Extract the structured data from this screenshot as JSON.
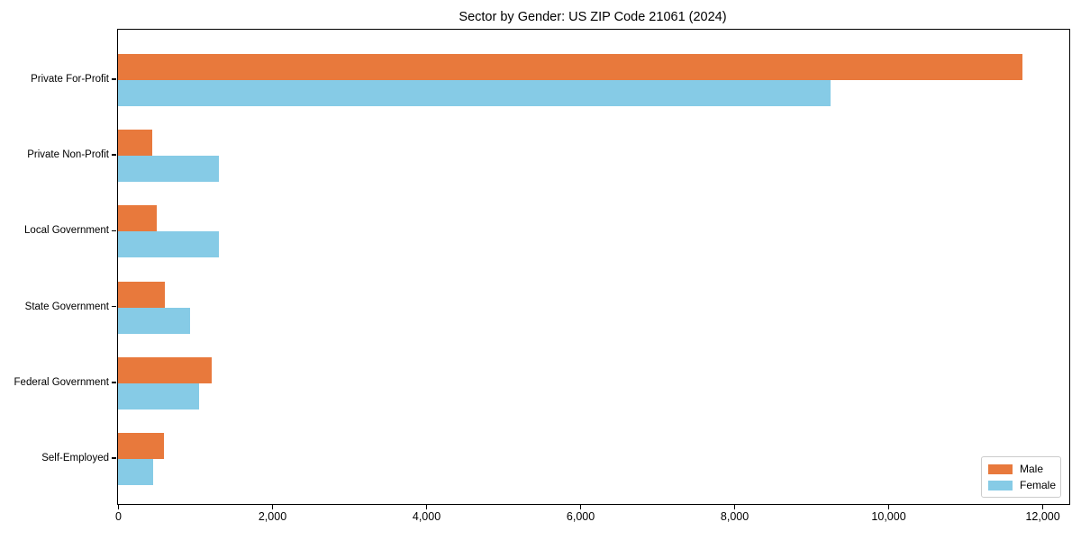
{
  "chart_data": {
    "type": "bar",
    "orientation": "horizontal",
    "title": "Sector by Gender: US ZIP Code 21061 (2024)",
    "categories": [
      "Private For-Profit",
      "Private Non-Profit",
      "Local Government",
      "State Government",
      "Federal Government",
      "Self-Employed"
    ],
    "series": [
      {
        "name": "Male",
        "color": "#E8793C",
        "values": [
          11740,
          450,
          500,
          610,
          1220,
          600
        ]
      },
      {
        "name": "Female",
        "color": "#86CBE6",
        "values": [
          9250,
          1310,
          1310,
          940,
          1050,
          460
        ]
      }
    ],
    "xlim": [
      0,
      12350
    ],
    "xticks": [
      0,
      2000,
      4000,
      6000,
      8000,
      10000,
      12000
    ],
    "xtick_labels": [
      "0",
      "2,000",
      "4,000",
      "6,000",
      "8,000",
      "10,000",
      "12,000"
    ],
    "grid": false,
    "xlabel": "",
    "ylabel": "",
    "legend": {
      "position": "lower-right",
      "entries": [
        "Male",
        "Female"
      ]
    }
  }
}
